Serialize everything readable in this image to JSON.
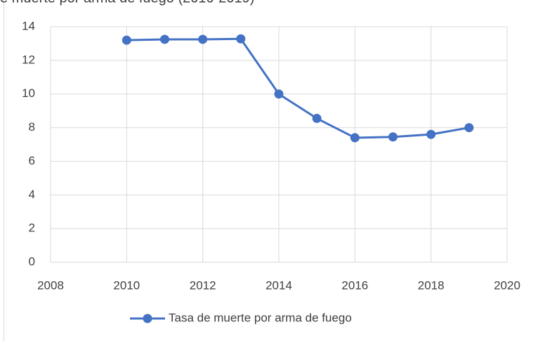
{
  "chart_data": {
    "type": "line",
    "title": "e muerte por arma de fuego (2010-2019)",
    "x": [
      2010,
      2011,
      2012,
      2013,
      2014,
      2015,
      2016,
      2017,
      2018,
      2019
    ],
    "series": [
      {
        "name": "Tasa de muerte por arma de fuego",
        "color": "#4472c4",
        "values": [
          13.2,
          13.25,
          13.25,
          13.28,
          10.0,
          8.55,
          7.4,
          7.45,
          7.6,
          8.0
        ]
      }
    ],
    "xlim": [
      2008,
      2020
    ],
    "xticks": [
      2008,
      2010,
      2012,
      2014,
      2016,
      2018,
      2020
    ],
    "ylim": [
      0,
      14
    ],
    "yticks": [
      0,
      2,
      4,
      6,
      8,
      10,
      12,
      14
    ],
    "grid": true,
    "legend": "bottom"
  }
}
